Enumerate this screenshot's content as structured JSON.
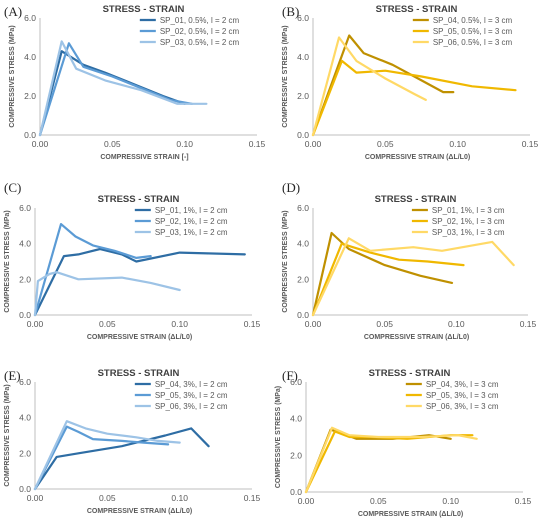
{
  "chart_data": [
    {
      "panel_label": "(A)",
      "type": "line",
      "title": "STRESS - STRAIN",
      "xlabel": "COMPRESSIVE  STRAIN [-]",
      "ylabel": "COMPRESSIVE STRESS (MPa)",
      "xlim": [
        0,
        0.15
      ],
      "ylim": [
        0,
        6
      ],
      "xticks": [
        "0.00",
        "0.05",
        "0.10",
        "0.15"
      ],
      "yticks": [
        "0.0",
        "2.0",
        "4.0",
        "6.0"
      ],
      "legend_position": "top-right",
      "series": [
        {
          "name": "SP_01, 0.5%, l = 2 cm",
          "color": "#2e6da4",
          "points": [
            [
              0,
              0
            ],
            [
              0.015,
              4.3
            ],
            [
              0.03,
              3.6
            ],
            [
              0.045,
              3.2
            ],
            [
              0.065,
              2.6
            ],
            [
              0.085,
              2.0
            ],
            [
              0.1,
              1.6
            ]
          ]
        },
        {
          "name": "SP_02, 0.5%, l = 2 cm",
          "color": "#5b9bd5",
          "points": [
            [
              0,
              0
            ],
            [
              0.02,
              4.7
            ],
            [
              0.03,
              3.5
            ],
            [
              0.05,
              3.0
            ],
            [
              0.07,
              2.4
            ],
            [
              0.09,
              1.8
            ],
            [
              0.105,
              1.6
            ]
          ]
        },
        {
          "name": "SP_03, 0.5%, l = 2 cm",
          "color": "#9dc3e6",
          "points": [
            [
              0,
              0
            ],
            [
              0.015,
              4.8
            ],
            [
              0.025,
              3.4
            ],
            [
              0.045,
              2.8
            ],
            [
              0.07,
              2.3
            ],
            [
              0.095,
              1.6
            ],
            [
              0.115,
              1.6
            ]
          ]
        }
      ]
    },
    {
      "panel_label": "(B)",
      "type": "line",
      "title": "STRESS - STRAIN",
      "xlabel": "COMPRESSIVE STRAIN (ΔL/L0)",
      "ylabel": "COMPRESSIVE STRESS (MPa)",
      "xlim": [
        0,
        0.15
      ],
      "ylim": [
        0,
        6
      ],
      "xticks": [
        "0.00",
        "0.05",
        "0.10",
        "0.15"
      ],
      "yticks": [
        "0.0",
        "2.0",
        "4.0",
        "6.0"
      ],
      "legend_position": "top-right",
      "series": [
        {
          "name": "SP_04, 0.5%, l = 3 cm",
          "color": "#bf9000",
          "points": [
            [
              0,
              0
            ],
            [
              0.025,
              5.1
            ],
            [
              0.035,
              4.2
            ],
            [
              0.055,
              3.6
            ],
            [
              0.075,
              2.8
            ],
            [
              0.09,
              2.2
            ],
            [
              0.097,
              2.2
            ]
          ]
        },
        {
          "name": "SP_05, 0.5%, l = 3 cm",
          "color": "#f0b800",
          "points": [
            [
              0,
              0
            ],
            [
              0.02,
              3.8
            ],
            [
              0.03,
              3.2
            ],
            [
              0.05,
              3.3
            ],
            [
              0.075,
              3.0
            ],
            [
              0.11,
              2.5
            ],
            [
              0.14,
              2.3
            ]
          ]
        },
        {
          "name": "SP_06, 0.5%, l = 3 cm",
          "color": "#ffd966",
          "points": [
            [
              0,
              0
            ],
            [
              0.018,
              5.0
            ],
            [
              0.03,
              3.8
            ],
            [
              0.05,
              2.9
            ],
            [
              0.07,
              2.1
            ],
            [
              0.078,
              1.8
            ]
          ]
        }
      ]
    },
    {
      "panel_label": "(C)",
      "type": "line",
      "title": "STRESS - STRAIN",
      "xlabel": "COMPRESSIVE STRAIN (ΔL/L0)",
      "ylabel": "COMPRESSIVE STRESS (MPa)",
      "xlim": [
        0,
        0.15
      ],
      "ylim": [
        0,
        6
      ],
      "xticks": [
        "0.00",
        "0.05",
        "0.10",
        "0.15"
      ],
      "yticks": [
        "0.0",
        "2.0",
        "4.0",
        "6.0"
      ],
      "legend_position": "top-right",
      "series": [
        {
          "name": "SP_01, 1%, l = 2 cm",
          "color": "#2e6da4",
          "points": [
            [
              0,
              0
            ],
            [
              0.02,
              3.3
            ],
            [
              0.03,
              3.4
            ],
            [
              0.045,
              3.7
            ],
            [
              0.06,
              3.4
            ],
            [
              0.07,
              3.0
            ],
            [
              0.1,
              3.5
            ],
            [
              0.145,
              3.4
            ]
          ]
        },
        {
          "name": "SP_02, 1%, l = 2 cm",
          "color": "#5b9bd5",
          "points": [
            [
              0,
              0
            ],
            [
              0.018,
              5.1
            ],
            [
              0.028,
              4.4
            ],
            [
              0.04,
              3.9
            ],
            [
              0.055,
              3.6
            ],
            [
              0.07,
              3.2
            ],
            [
              0.08,
              3.3
            ]
          ]
        },
        {
          "name": "SP_03, 1%, l = 2 cm",
          "color": "#9dc3e6",
          "points": [
            [
              0,
              0
            ],
            [
              0.002,
              1.9
            ],
            [
              0.01,
              2.3
            ],
            [
              0.015,
              2.4
            ],
            [
              0.03,
              2.0
            ],
            [
              0.06,
              2.1
            ],
            [
              0.08,
              1.8
            ],
            [
              0.1,
              1.4
            ]
          ]
        }
      ]
    },
    {
      "panel_label": "(D)",
      "type": "line",
      "title": "STRESS - STRAIN",
      "xlabel": "COMPRESSIVE STRAIN (ΔL/L0)",
      "ylabel": "COMPRESSIVE STRESS (MPa)",
      "xlim": [
        0,
        0.15
      ],
      "ylim": [
        0,
        6
      ],
      "xticks": [
        "0.00",
        "0.05",
        "0.10",
        "0.15"
      ],
      "yticks": [
        "0.0",
        "2.0",
        "4.0",
        "6.0"
      ],
      "legend_position": "top-right",
      "series": [
        {
          "name": "SP_01, 1%, l = 3 cm",
          "color": "#bf9000",
          "points": [
            [
              0,
              0
            ],
            [
              0.013,
              4.6
            ],
            [
              0.025,
              3.7
            ],
            [
              0.05,
              2.8
            ],
            [
              0.075,
              2.2
            ],
            [
              0.097,
              1.8
            ]
          ]
        },
        {
          "name": "SP_02, 1%, l = 3 cm",
          "color": "#f0b800",
          "points": [
            [
              0,
              0
            ],
            [
              0.02,
              4.0
            ],
            [
              0.04,
              3.5
            ],
            [
              0.06,
              3.1
            ],
            [
              0.08,
              3.0
            ],
            [
              0.105,
              2.8
            ]
          ]
        },
        {
          "name": "SP_03, 1%, l = 3 cm",
          "color": "#ffd966",
          "points": [
            [
              0,
              0
            ],
            [
              0.025,
              4.3
            ],
            [
              0.04,
              3.6
            ],
            [
              0.07,
              3.8
            ],
            [
              0.09,
              3.6
            ],
            [
              0.125,
              4.1
            ],
            [
              0.14,
              2.8
            ]
          ]
        }
      ]
    },
    {
      "panel_label": "(E)",
      "type": "line",
      "title": "STRESS - STRAIN",
      "xlabel": "COMPRESSIVE STRAIN (ΔL/L0)",
      "ylabel": "COMPRESSIVE STRESS (MPa)",
      "xlim": [
        0,
        0.15
      ],
      "ylim": [
        0,
        6
      ],
      "xticks": [
        "0.00",
        "0.05",
        "0.10",
        "0.15"
      ],
      "yticks": [
        "0.0",
        "2.0",
        "4.0",
        "6.0"
      ],
      "legend_position": "top-right",
      "series": [
        {
          "name": "SP_04, 3%, l = 2 cm",
          "color": "#2e6da4",
          "points": [
            [
              0,
              0
            ],
            [
              0.015,
              1.8
            ],
            [
              0.03,
              2.0
            ],
            [
              0.06,
              2.4
            ],
            [
              0.09,
              3.0
            ],
            [
              0.108,
              3.4
            ],
            [
              0.12,
              2.4
            ]
          ]
        },
        {
          "name": "SP_05, 3%, l = 2 cm",
          "color": "#5b9bd5",
          "points": [
            [
              0,
              0
            ],
            [
              0.022,
              3.5
            ],
            [
              0.03,
              3.2
            ],
            [
              0.04,
              2.8
            ],
            [
              0.06,
              2.7
            ],
            [
              0.075,
              2.6
            ],
            [
              0.092,
              2.5
            ]
          ]
        },
        {
          "name": "SP_06, 3%, l = 2 cm",
          "color": "#9dc3e6",
          "points": [
            [
              0,
              0
            ],
            [
              0.022,
              3.8
            ],
            [
              0.035,
              3.4
            ],
            [
              0.05,
              3.1
            ],
            [
              0.07,
              2.9
            ],
            [
              0.085,
              2.7
            ],
            [
              0.1,
              2.6
            ]
          ]
        }
      ]
    },
    {
      "panel_label": "(F)",
      "type": "line",
      "title": "STRESS - STRAIN",
      "xlabel": "COMPRESSIVE STRAIN (ΔL/L0)",
      "ylabel": "COMPRESSIVE STRESS (MPa)",
      "xlim": [
        0,
        0.15
      ],
      "ylim": [
        0,
        6
      ],
      "xticks": [
        "0.00",
        "0.05",
        "0.10",
        "0.15"
      ],
      "yticks": [
        "0.0",
        "2.0",
        "4.0",
        "6.0"
      ],
      "legend_position": "top-right",
      "series": [
        {
          "name": "SP_04, 3%, l = 3 cm",
          "color": "#bf9000",
          "points": [
            [
              0,
              0
            ],
            [
              0.017,
              3.4
            ],
            [
              0.025,
              3.2
            ],
            [
              0.035,
              2.9
            ],
            [
              0.06,
              2.9
            ],
            [
              0.085,
              3.1
            ],
            [
              0.1,
              2.9
            ]
          ]
        },
        {
          "name": "SP_05, 3%, l = 3 cm",
          "color": "#f0b800",
          "points": [
            [
              0,
              0
            ],
            [
              0.02,
              3.3
            ],
            [
              0.03,
              3.0
            ],
            [
              0.045,
              3.0
            ],
            [
              0.07,
              2.9
            ],
            [
              0.1,
              3.1
            ],
            [
              0.115,
              3.1
            ]
          ]
        },
        {
          "name": "SP_06, 3%, l = 3 cm",
          "color": "#ffd966",
          "points": [
            [
              0,
              0
            ],
            [
              0.018,
              3.5
            ],
            [
              0.03,
              3.1
            ],
            [
              0.05,
              3.0
            ],
            [
              0.08,
              3.0
            ],
            [
              0.105,
              3.1
            ],
            [
              0.118,
              2.9
            ]
          ]
        }
      ]
    }
  ]
}
